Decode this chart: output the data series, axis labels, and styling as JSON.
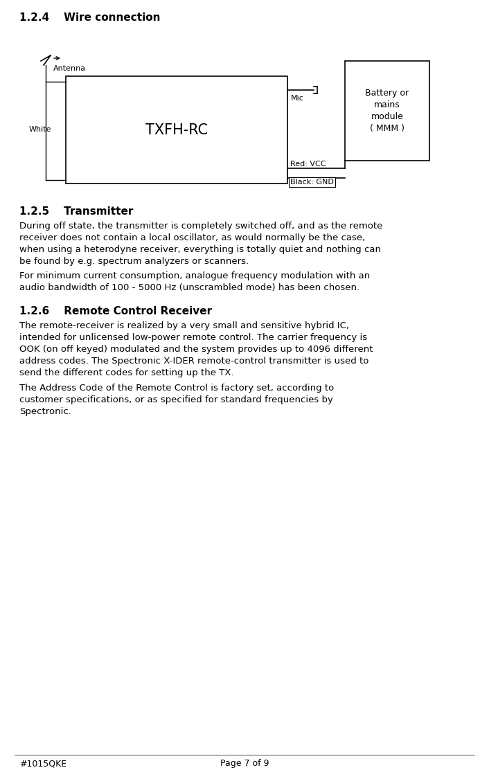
{
  "bg_color": "#ffffff",
  "section_124_title": "1.2.4    Wire connection",
  "section_125_title": "1.2.5    Transmitter",
  "section_126_title": "1.2.6    Remote Control Receiver",
  "para_125_1": "During off state, the transmitter is completely switched off, and as the remote\nreceiver does not contain a local oscillator, as would normally be the case,\nwhen using a heterodyne receiver, everything is totally quiet and nothing can\nbe found by e.g. spectrum analyzers or scanners.",
  "para_125_2": "For minimum current consumption, analogue frequency modulation with an\naudio bandwidth of 100 - 5000 Hz (unscrambled mode) has been chosen.",
  "para_126_1": "The remote-receiver is realized by a very small and sensitive hybrid IC,\nintended for unlicensed low-power remote control. The carrier frequency is\nOOK (on off keyed) modulated and the system provides up to 4096 different\naddress codes. The Spectronic X-IDER remote-control transmitter is used to\nsend the different codes for setting up the TX.",
  "para_126_2": "The Address Code of the Remote Control is factory set, according to\ncustomer specifications, or as specified for standard frequencies by\nSpectronic.",
  "footer_left": "#1015QKE",
  "footer_center": "Page 7 of 9",
  "diagram_txfh_label": "TXFH-RC",
  "diagram_antenna_label": "Antenna",
  "diagram_white_label": "White",
  "diagram_mic_label": "Mic",
  "diagram_red_vcc_label": "Red: VCC",
  "diagram_black_gnd_label": "Black: GND",
  "diagram_battery_label": "Battery or\nmains\nmodule\n( MMM )"
}
